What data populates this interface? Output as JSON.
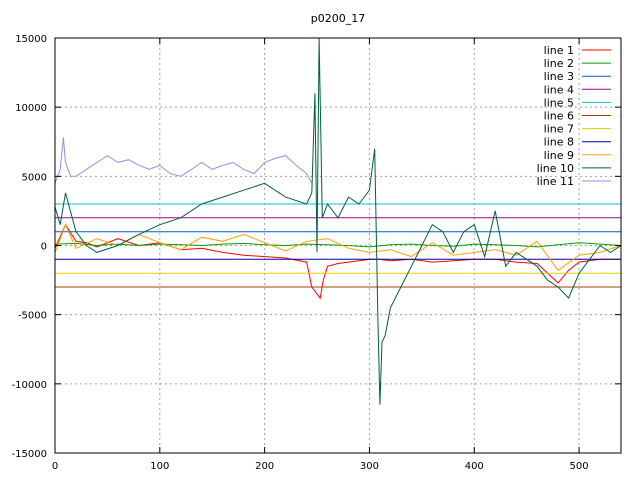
{
  "chart_data": {
    "type": "line",
    "title": "p0200_17",
    "xlabel": "",
    "ylabel": "",
    "xlim": [
      0,
      540
    ],
    "ylim": [
      -15000,
      15000
    ],
    "xticks": [
      0,
      100,
      200,
      300,
      400,
      500
    ],
    "yticks": [
      -15000,
      -10000,
      -5000,
      0,
      5000,
      10000,
      15000
    ],
    "grid": true,
    "legend_position": "top-right",
    "series": [
      {
        "name": "line 1",
        "color": "#ff0000",
        "x": [
          0,
          10,
          20,
          30,
          40,
          60,
          80,
          100,
          120,
          140,
          160,
          180,
          200,
          220,
          240,
          245,
          250,
          253,
          256,
          260,
          270,
          280,
          290,
          300,
          310,
          320,
          340,
          360,
          380,
          400,
          420,
          440,
          460,
          480,
          490,
          500,
          520,
          540
        ],
        "y": [
          -200,
          1500,
          300,
          200,
          -100,
          500,
          0,
          200,
          -300,
          -200,
          -500,
          -700,
          -800,
          -900,
          -1200,
          -3000,
          -3500,
          -3800,
          -2500,
          -1500,
          -1300,
          -1200,
          -1100,
          -1000,
          -1000,
          -1100,
          -1000,
          -1200,
          -1100,
          -1000,
          -1000,
          -1200,
          -1300,
          -2700,
          -1800,
          -1200,
          -1000,
          -1000
        ]
      },
      {
        "name": "line 2",
        "color": "#00a000",
        "x": [
          0,
          20,
          40,
          60,
          80,
          100,
          120,
          140,
          160,
          180,
          200,
          220,
          240,
          260,
          280,
          300,
          320,
          340,
          360,
          380,
          400,
          420,
          440,
          460,
          480,
          500,
          520,
          540
        ],
        "y": [
          100,
          150,
          0,
          100,
          0,
          100,
          50,
          0,
          100,
          150,
          50,
          0,
          100,
          50,
          0,
          -100,
          50,
          100,
          0,
          -50,
          100,
          50,
          0,
          -100,
          50,
          200,
          100,
          0
        ]
      },
      {
        "name": "line 3",
        "color": "#0060c0",
        "x": [
          0,
          100,
          200,
          300,
          400,
          500,
          540
        ],
        "y": [
          1000,
          1000,
          1000,
          1000,
          1000,
          1000,
          1000
        ]
      },
      {
        "name": "line 4",
        "color": "#a000a0",
        "x": [
          0,
          100,
          200,
          300,
          400,
          500,
          540
        ],
        "y": [
          2000,
          2000,
          2000,
          2000,
          2000,
          2000,
          2000
        ]
      },
      {
        "name": "line 5",
        "color": "#00c8c8",
        "x": [
          0,
          100,
          200,
          300,
          400,
          500,
          540
        ],
        "y": [
          3000,
          3000,
          3000,
          3000,
          3000,
          3000,
          3000
        ]
      },
      {
        "name": "line 6",
        "color": "#a04000",
        "x": [
          0,
          100,
          200,
          300,
          400,
          500,
          540
        ],
        "y": [
          -3000,
          -3000,
          -3000,
          -3000,
          -3000,
          -3000,
          -3000
        ]
      },
      {
        "name": "line 7",
        "color": "#e0d000",
        "x": [
          0,
          100,
          200,
          300,
          400,
          500,
          540
        ],
        "y": [
          -2000,
          -2000,
          -2000,
          -2000,
          -2000,
          -2000,
          -2000
        ]
      },
      {
        "name": "line 8",
        "color": "#0000a0",
        "x": [
          0,
          100,
          200,
          300,
          400,
          500,
          540
        ],
        "y": [
          -1000,
          -1000,
          -1000,
          -1000,
          -1000,
          -1000,
          -1000
        ]
      },
      {
        "name": "line 9",
        "color": "#ffa000",
        "x": [
          0,
          10,
          20,
          40,
          60,
          80,
          100,
          120,
          140,
          160,
          180,
          200,
          220,
          240,
          260,
          280,
          300,
          320,
          340,
          360,
          380,
          400,
          420,
          440,
          460,
          480,
          500,
          520,
          540
        ],
        "y": [
          -500,
          1500,
          -200,
          500,
          0,
          800,
          200,
          -300,
          600,
          300,
          800,
          200,
          -400,
          300,
          500,
          -200,
          -500,
          -300,
          -800,
          200,
          -700,
          -500,
          -300,
          -700,
          300,
          -1800,
          -700,
          -500,
          0
        ]
      },
      {
        "name": "line 10",
        "color": "#006040",
        "x": [
          0,
          5,
          10,
          20,
          30,
          40,
          60,
          80,
          100,
          120,
          140,
          160,
          180,
          200,
          220,
          240,
          245,
          248,
          250,
          252,
          255,
          260,
          265,
          270,
          280,
          290,
          300,
          305,
          308,
          310,
          312,
          315,
          320,
          330,
          340,
          350,
          360,
          370,
          380,
          390,
          400,
          410,
          420,
          430,
          440,
          450,
          460,
          470,
          480,
          490,
          500,
          510,
          520,
          530,
          540
        ],
        "y": [
          2800,
          1500,
          3800,
          1000,
          0,
          -500,
          0,
          800,
          1500,
          2000,
          3000,
          3500,
          4000,
          4500,
          3500,
          3000,
          3800,
          11000,
          -500,
          15000,
          2000,
          3000,
          2500,
          2000,
          3500,
          3000,
          4000,
          7000,
          -5000,
          -11500,
          -7000,
          -6500,
          -4500,
          -3000,
          -1500,
          0,
          1500,
          1000,
          -500,
          1000,
          1500,
          -800,
          2500,
          -1500,
          -500,
          -1000,
          -1500,
          -2500,
          -3000,
          -3800,
          -2000,
          -1000,
          0,
          -500,
          0
        ]
      },
      {
        "name": "line 11",
        "color": "#9090e0",
        "x": [
          0,
          5,
          8,
          10,
          15,
          20,
          30,
          40,
          50,
          60,
          70,
          80,
          90,
          100,
          110,
          120,
          130,
          140,
          150,
          160,
          170,
          180,
          190,
          200,
          210,
          220,
          230,
          240,
          245
        ],
        "y": [
          4500,
          5500,
          7800,
          6000,
          5000,
          5000,
          5500,
          6000,
          6500,
          6000,
          6200,
          5800,
          5500,
          5800,
          5200,
          5000,
          5500,
          6000,
          5500,
          5800,
          6000,
          5500,
          5200,
          6000,
          6300,
          6500,
          5800,
          5200,
          4500
        ]
      }
    ]
  }
}
